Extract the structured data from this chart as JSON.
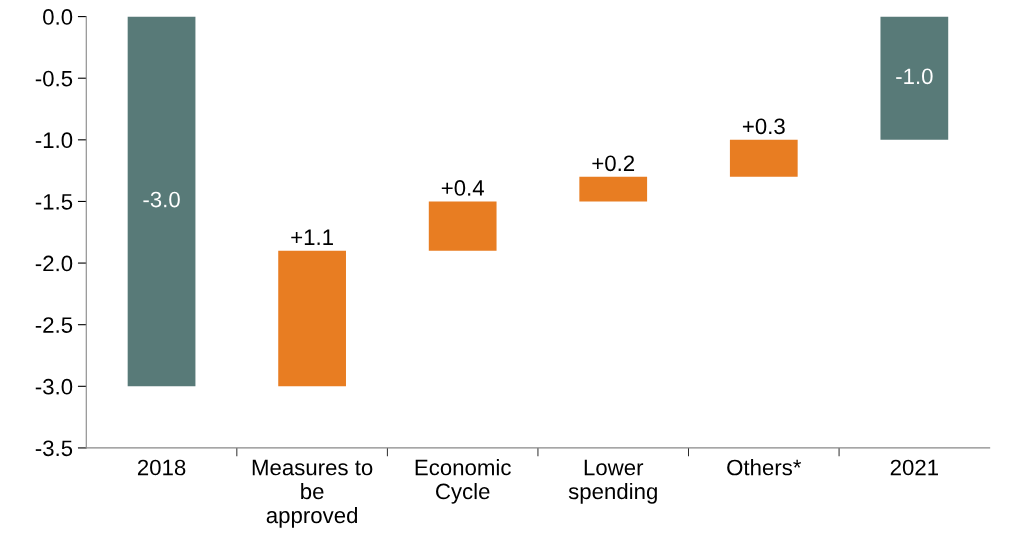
{
  "chart_data": {
    "type": "bar",
    "categories": [
      "2018",
      "Measures to\nbe\napproved",
      "Economic\nCycle",
      "Lower\nspending",
      "Others*",
      "2021"
    ],
    "values": [
      -3.0,
      1.1,
      0.4,
      0.2,
      0.3,
      -1.0
    ],
    "base": [
      0,
      -3.0,
      -1.9,
      -1.5,
      -1.3,
      0
    ],
    "colors": [
      "#587a78",
      "#e87d22",
      "#e87d22",
      "#e87d22",
      "#e87d22",
      "#587a78"
    ],
    "value_labels": [
      "-3.0",
      "+1.1",
      "+0.4",
      "+0.2",
      "+0.3",
      "-1.0"
    ],
    "ylim": [
      -3.5,
      0
    ],
    "yticks": [
      {
        "value": 0,
        "label": "0.0"
      },
      {
        "value": -0.5,
        "label": "-0.5"
      },
      {
        "value": -1,
        "label": "-1.0"
      },
      {
        "value": -1.5,
        "label": "-1.5"
      },
      {
        "value": -2,
        "label": "-2.0"
      },
      {
        "value": -2.5,
        "label": "-2.5"
      },
      {
        "value": -3,
        "label": "-3.0"
      },
      {
        "value": -3.5,
        "label": "-3.5"
      }
    ],
    "grid": false,
    "legend": false
  }
}
